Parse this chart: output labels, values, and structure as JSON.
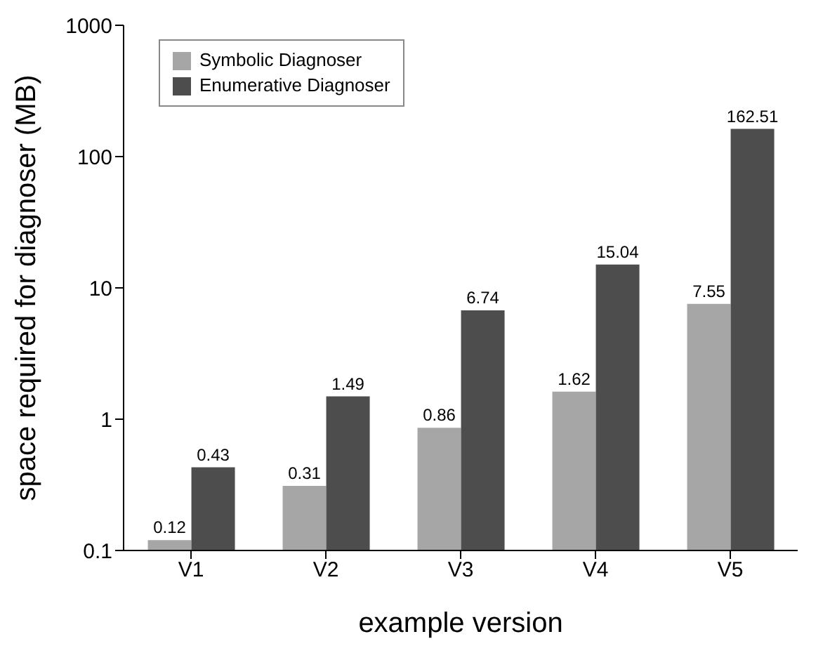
{
  "chart_data": {
    "type": "bar",
    "xlabel": "example version",
    "ylabel": "space required for diagnoser (MB)",
    "categories": [
      "V1",
      "V2",
      "V3",
      "V4",
      "V5"
    ],
    "series": [
      {
        "name": "Symbolic Diagnoser",
        "color": "#a6a6a6",
        "values": [
          0.12,
          0.31,
          0.86,
          1.62,
          7.55
        ]
      },
      {
        "name": "Enumerative Diagnoser",
        "color": "#4d4d4d",
        "values": [
          0.43,
          1.49,
          6.74,
          15.04,
          162.51
        ]
      }
    ],
    "log": true,
    "ylim": [
      0.1,
      1000
    ],
    "yticks": [
      0.1,
      1,
      10,
      100,
      1000
    ],
    "data_labels": true,
    "legend": "top left",
    "grid": false
  }
}
